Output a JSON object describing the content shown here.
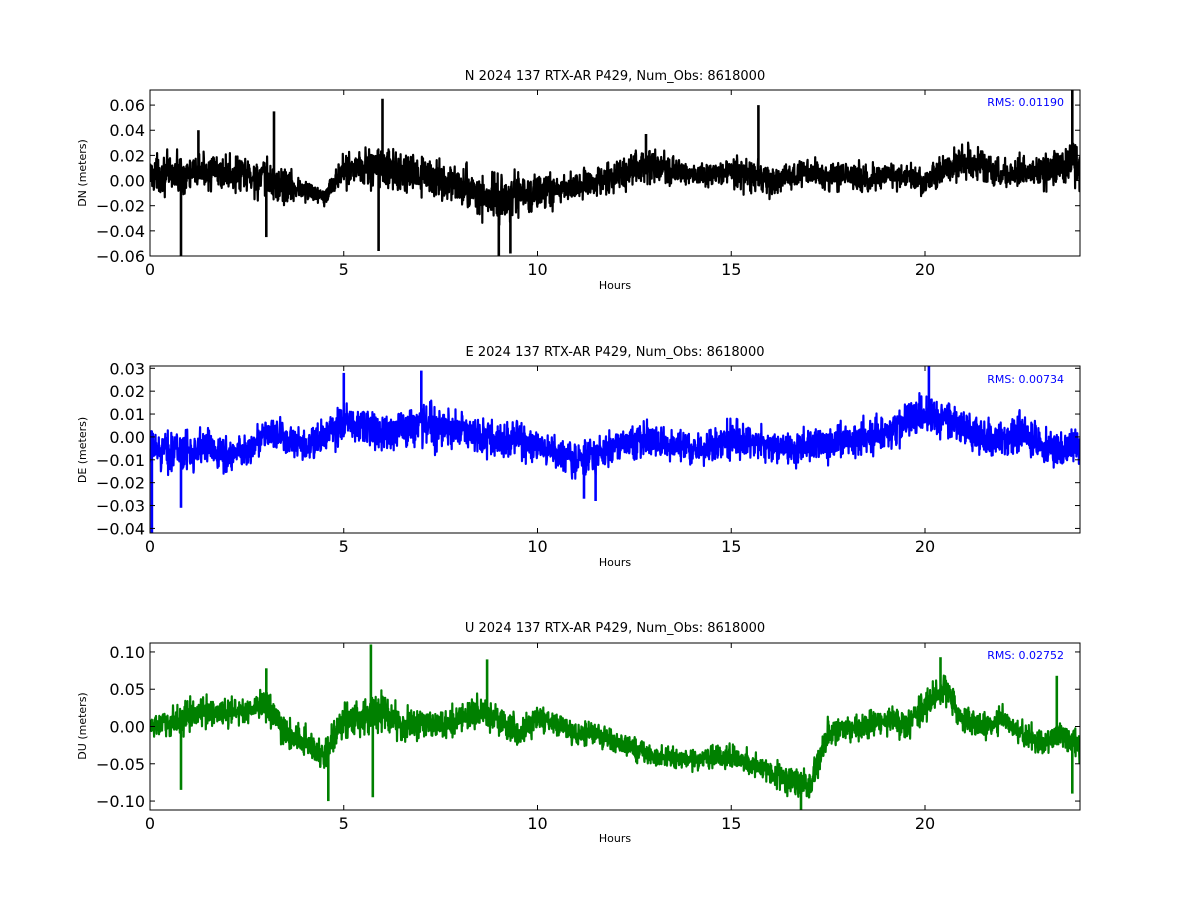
{
  "chart_data": [
    {
      "type": "line",
      "component": "N",
      "title": "N 2024 137 RTX-AR  P429, Num_Obs: 8618000",
      "xlabel": "Hours",
      "ylabel": "DN (meters)",
      "xlim": [
        0,
        24
      ],
      "ylim": [
        -0.06,
        0.072
      ],
      "xticks": [
        0,
        5,
        10,
        15,
        20
      ],
      "xtick_labels": [
        "0",
        "5",
        "10",
        "15",
        "20"
      ],
      "yticks": [
        -0.06,
        -0.04,
        -0.02,
        0.0,
        0.02,
        0.04,
        0.06
      ],
      "ytick_labels": [
        "−0.06",
        "−0.04",
        "−0.02",
        "0.00",
        "0.02",
        "0.04",
        "0.06"
      ],
      "rms_text": "RMS:  0.01190",
      "series": [
        {
          "color": "#000000",
          "x": [
            0,
            0.5,
            1,
            1.5,
            2,
            2.5,
            3,
            3.5,
            4,
            4.5,
            5,
            5.5,
            6,
            6.5,
            7,
            7.5,
            8,
            8.5,
            9,
            9.5,
            10,
            10.5,
            11,
            11.5,
            12,
            12.5,
            13,
            13.5,
            14,
            14.5,
            15,
            15.5,
            16,
            16.5,
            17,
            17.5,
            18,
            18.5,
            19,
            19.5,
            20,
            20.5,
            21,
            21.5,
            22,
            22.5,
            23,
            23.5,
            24
          ],
          "center": [
            0.005,
            0.006,
            0.004,
            0.008,
            0.005,
            0.004,
            0.0,
            -0.004,
            -0.008,
            -0.012,
            0.008,
            0.012,
            0.01,
            0.005,
            0.004,
            0.0,
            -0.004,
            -0.012,
            -0.016,
            -0.012,
            -0.01,
            -0.008,
            -0.004,
            0.0,
            0.004,
            0.008,
            0.012,
            0.008,
            0.004,
            0.004,
            0.006,
            0.004,
            0.0,
            0.003,
            0.006,
            0.004,
            0.003,
            0.0,
            0.004,
            0.003,
            -0.002,
            0.008,
            0.016,
            0.012,
            0.004,
            0.008,
            0.008,
            0.012,
            0.012
          ],
          "amplitude": [
            0.02,
            0.022,
            0.02,
            0.018,
            0.02,
            0.022,
            0.024,
            0.022,
            0.012,
            0.01,
            0.018,
            0.024,
            0.026,
            0.022,
            0.02,
            0.02,
            0.022,
            0.024,
            0.028,
            0.026,
            0.02,
            0.018,
            0.016,
            0.015,
            0.016,
            0.018,
            0.02,
            0.016,
            0.012,
            0.014,
            0.018,
            0.02,
            0.016,
            0.014,
            0.014,
            0.016,
            0.016,
            0.016,
            0.014,
            0.014,
            0.014,
            0.016,
            0.02,
            0.018,
            0.016,
            0.016,
            0.018,
            0.022,
            0.024
          ],
          "spikes": [
            [
              0.8,
              -0.06
            ],
            [
              1.25,
              0.04
            ],
            [
              3.2,
              0.055
            ],
            [
              3.0,
              -0.045
            ],
            [
              5.9,
              -0.056
            ],
            [
              6.0,
              0.065
            ],
            [
              9.0,
              -0.06
            ],
            [
              9.3,
              -0.058
            ],
            [
              12.8,
              0.037
            ],
            [
              15.7,
              0.06
            ],
            [
              23.8,
              0.072
            ]
          ]
        }
      ]
    },
    {
      "type": "line",
      "component": "E",
      "title": "E 2024 137 RTX-AR  P429, Num_Obs: 8618000",
      "xlabel": "Hours",
      "ylabel": "DE (meters)",
      "xlim": [
        0,
        24
      ],
      "ylim": [
        -0.042,
        0.031
      ],
      "xticks": [
        0,
        5,
        10,
        15,
        20
      ],
      "xtick_labels": [
        "0",
        "5",
        "10",
        "15",
        "20"
      ],
      "yticks": [
        -0.04,
        -0.03,
        -0.02,
        -0.01,
        0.0,
        0.01,
        0.02,
        0.03
      ],
      "ytick_labels": [
        "−0.04",
        "−0.03",
        "−0.02",
        "−0.01",
        "0.00",
        "0.01",
        "0.02",
        "0.03"
      ],
      "rms_text": "RMS:  0.00734",
      "series": [
        {
          "color": "#0000ff",
          "x": [
            0,
            0.5,
            1,
            1.5,
            2,
            2.5,
            3,
            3.5,
            4,
            4.5,
            5,
            5.5,
            6,
            6.5,
            7,
            7.5,
            8,
            8.5,
            9,
            9.5,
            10,
            10.5,
            11,
            11.5,
            12,
            12.5,
            13,
            13.5,
            14,
            14.5,
            15,
            15.5,
            16,
            16.5,
            17,
            17.5,
            18,
            18.5,
            19,
            19.5,
            20,
            20.5,
            21,
            21.5,
            22,
            22.5,
            23,
            23.5,
            24
          ],
          "center": [
            -0.005,
            -0.006,
            -0.006,
            -0.004,
            -0.008,
            -0.006,
            0.002,
            -0.001,
            -0.005,
            0.0,
            0.006,
            0.004,
            0.002,
            0.004,
            0.006,
            0.004,
            0.002,
            0.0,
            -0.002,
            0.0,
            -0.006,
            -0.006,
            -0.01,
            -0.008,
            -0.004,
            -0.002,
            -0.002,
            -0.004,
            -0.006,
            -0.004,
            0.0,
            -0.002,
            -0.004,
            -0.006,
            -0.004,
            -0.002,
            -0.002,
            0.0,
            0.002,
            0.006,
            0.01,
            0.008,
            0.004,
            0.0,
            -0.002,
            0.002,
            -0.004,
            -0.006,
            -0.004
          ],
          "amplitude": [
            0.011,
            0.012,
            0.012,
            0.011,
            0.01,
            0.01,
            0.011,
            0.01,
            0.009,
            0.011,
            0.013,
            0.012,
            0.012,
            0.013,
            0.014,
            0.013,
            0.012,
            0.012,
            0.012,
            0.011,
            0.01,
            0.01,
            0.011,
            0.011,
            0.011,
            0.011,
            0.01,
            0.009,
            0.01,
            0.01,
            0.011,
            0.011,
            0.01,
            0.01,
            0.011,
            0.011,
            0.01,
            0.011,
            0.011,
            0.012,
            0.013,
            0.012,
            0.012,
            0.011,
            0.011,
            0.013,
            0.011,
            0.011,
            0.01
          ],
          "spikes": [
            [
              0.05,
              -0.042
            ],
            [
              0.8,
              -0.031
            ],
            [
              5.0,
              0.028
            ],
            [
              7.0,
              0.029
            ],
            [
              11.2,
              -0.027
            ],
            [
              11.5,
              -0.028
            ],
            [
              20.1,
              0.031
            ]
          ]
        }
      ]
    },
    {
      "type": "line",
      "component": "U",
      "title": "U 2024 137 RTX-AR  P429, Num_Obs: 8618000",
      "xlabel": "Hours",
      "ylabel": "DU (meters)",
      "xlim": [
        0,
        24
      ],
      "ylim": [
        -0.112,
        0.112
      ],
      "xticks": [
        0,
        5,
        10,
        15,
        20
      ],
      "xtick_labels": [
        "0",
        "5",
        "10",
        "15",
        "20"
      ],
      "yticks": [
        -0.1,
        -0.05,
        0.0,
        0.05,
        0.1
      ],
      "ytick_labels": [
        "−0.10",
        "−0.05",
        "0.00",
        "0.05",
        "0.10"
      ],
      "rms_text": "RMS:  0.02752",
      "series": [
        {
          "color": "#008000",
          "x": [
            0,
            0.5,
            1,
            1.5,
            2,
            2.5,
            3,
            3.5,
            4,
            4.5,
            5,
            5.5,
            6,
            6.5,
            7,
            7.5,
            8,
            8.5,
            9,
            9.5,
            10,
            10.5,
            11,
            11.5,
            12,
            12.5,
            13,
            13.5,
            14,
            14.5,
            15,
            15.5,
            16,
            16.5,
            17,
            17.5,
            18,
            18.5,
            19,
            19.5,
            20,
            20.5,
            21,
            21.5,
            22,
            22.5,
            23,
            23.5,
            24
          ],
          "center": [
            0.0,
            0.005,
            0.015,
            0.02,
            0.02,
            0.02,
            0.03,
            -0.01,
            -0.02,
            -0.04,
            0.01,
            0.01,
            0.02,
            0.0,
            0.005,
            0.0,
            0.01,
            0.02,
            0.01,
            -0.01,
            0.01,
            0.005,
            -0.01,
            -0.01,
            -0.02,
            -0.03,
            -0.04,
            -0.04,
            -0.045,
            -0.04,
            -0.04,
            -0.05,
            -0.06,
            -0.07,
            -0.08,
            -0.01,
            0.0,
            0.0,
            0.01,
            0.0,
            0.03,
            0.05,
            0.01,
            0.0,
            0.01,
            -0.01,
            -0.02,
            -0.01,
            -0.03
          ],
          "amplitude": [
            0.022,
            0.024,
            0.03,
            0.028,
            0.026,
            0.026,
            0.03,
            0.03,
            0.028,
            0.03,
            0.036,
            0.034,
            0.04,
            0.032,
            0.03,
            0.026,
            0.028,
            0.03,
            0.034,
            0.026,
            0.026,
            0.024,
            0.022,
            0.022,
            0.02,
            0.02,
            0.02,
            0.02,
            0.018,
            0.02,
            0.022,
            0.024,
            0.026,
            0.028,
            0.03,
            0.03,
            0.026,
            0.026,
            0.026,
            0.026,
            0.03,
            0.028,
            0.026,
            0.024,
            0.024,
            0.022,
            0.024,
            0.026,
            0.028
          ],
          "spikes": [
            [
              0.8,
              -0.085
            ],
            [
              3.0,
              0.078
            ],
            [
              4.6,
              -0.1
            ],
            [
              5.7,
              0.11
            ],
            [
              5.75,
              -0.095
            ],
            [
              8.7,
              0.09
            ],
            [
              16.8,
              -0.112
            ],
            [
              20.4,
              0.093
            ],
            [
              23.8,
              -0.09
            ],
            [
              23.4,
              0.068
            ]
          ]
        }
      ]
    }
  ]
}
